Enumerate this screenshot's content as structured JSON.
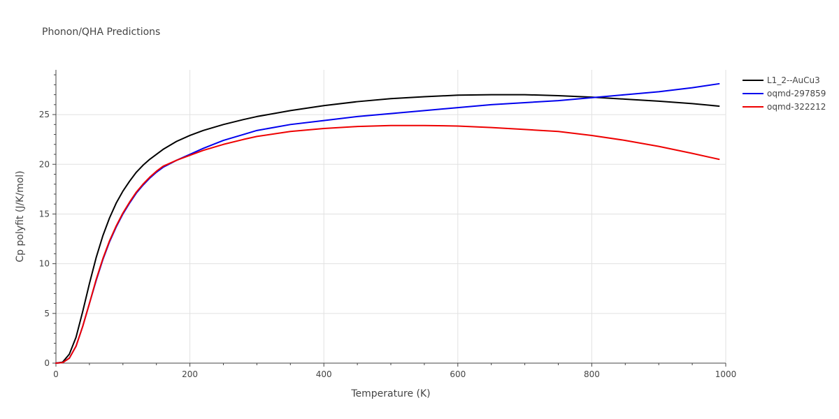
{
  "chart_data": {
    "type": "line",
    "title": "Phonon/QHA Predictions",
    "xlabel": "Temperature (K)",
    "ylabel": "Cp polyfit (J/K/mol)",
    "xlim": [
      0,
      1000
    ],
    "ylim": [
      0,
      29.5
    ],
    "x_ticks": [
      0,
      200,
      400,
      600,
      800,
      1000
    ],
    "y_ticks": [
      0,
      5,
      10,
      15,
      20,
      25
    ],
    "grid": true,
    "legend_position": "right",
    "series": [
      {
        "name": "L1_2--AuCu3",
        "color": "#000000",
        "x": [
          0,
          10,
          20,
          30,
          40,
          50,
          60,
          70,
          80,
          90,
          100,
          110,
          120,
          130,
          140,
          150,
          160,
          180,
          200,
          220,
          250,
          280,
          300,
          350,
          400,
          450,
          500,
          550,
          600,
          650,
          700,
          750,
          800,
          850,
          900,
          950,
          990
        ],
        "y": [
          0,
          0.1,
          0.9,
          2.6,
          5.2,
          8.0,
          10.6,
          12.8,
          14.6,
          16.1,
          17.3,
          18.3,
          19.2,
          19.9,
          20.5,
          21.0,
          21.5,
          22.3,
          22.9,
          23.4,
          24.0,
          24.5,
          24.8,
          25.4,
          25.9,
          26.3,
          26.6,
          26.8,
          26.95,
          27.0,
          27.0,
          26.9,
          26.75,
          26.55,
          26.35,
          26.1,
          25.85
        ]
      },
      {
        "name": "oqmd-297859",
        "color": "#0000ee",
        "x": [
          0,
          10,
          20,
          30,
          40,
          50,
          60,
          70,
          80,
          90,
          100,
          110,
          120,
          130,
          140,
          150,
          160,
          180,
          200,
          220,
          250,
          280,
          300,
          350,
          400,
          450,
          500,
          550,
          600,
          650,
          700,
          750,
          800,
          850,
          900,
          950,
          990
        ],
        "y": [
          0,
          0.05,
          0.5,
          1.7,
          3.7,
          6.0,
          8.3,
          10.4,
          12.2,
          13.7,
          15.0,
          16.1,
          17.1,
          17.9,
          18.6,
          19.2,
          19.7,
          20.4,
          21.0,
          21.6,
          22.4,
          23.0,
          23.4,
          24.0,
          24.4,
          24.8,
          25.1,
          25.4,
          25.7,
          26.0,
          26.2,
          26.4,
          26.7,
          27.0,
          27.3,
          27.7,
          28.1
        ]
      },
      {
        "name": "oqmd-322212",
        "color": "#ee0000",
        "x": [
          0,
          10,
          20,
          30,
          40,
          50,
          60,
          70,
          80,
          90,
          100,
          110,
          120,
          130,
          140,
          150,
          160,
          180,
          200,
          220,
          250,
          280,
          300,
          350,
          400,
          450,
          500,
          550,
          600,
          650,
          700,
          750,
          800,
          850,
          900,
          950,
          990
        ],
        "y": [
          0,
          0.05,
          0.5,
          1.7,
          3.7,
          6.0,
          8.4,
          10.5,
          12.3,
          13.8,
          15.1,
          16.2,
          17.2,
          18.0,
          18.7,
          19.3,
          19.8,
          20.4,
          20.9,
          21.4,
          22.0,
          22.5,
          22.8,
          23.3,
          23.6,
          23.8,
          23.9,
          23.9,
          23.85,
          23.7,
          23.5,
          23.3,
          22.9,
          22.4,
          21.8,
          21.1,
          20.5
        ]
      }
    ]
  }
}
